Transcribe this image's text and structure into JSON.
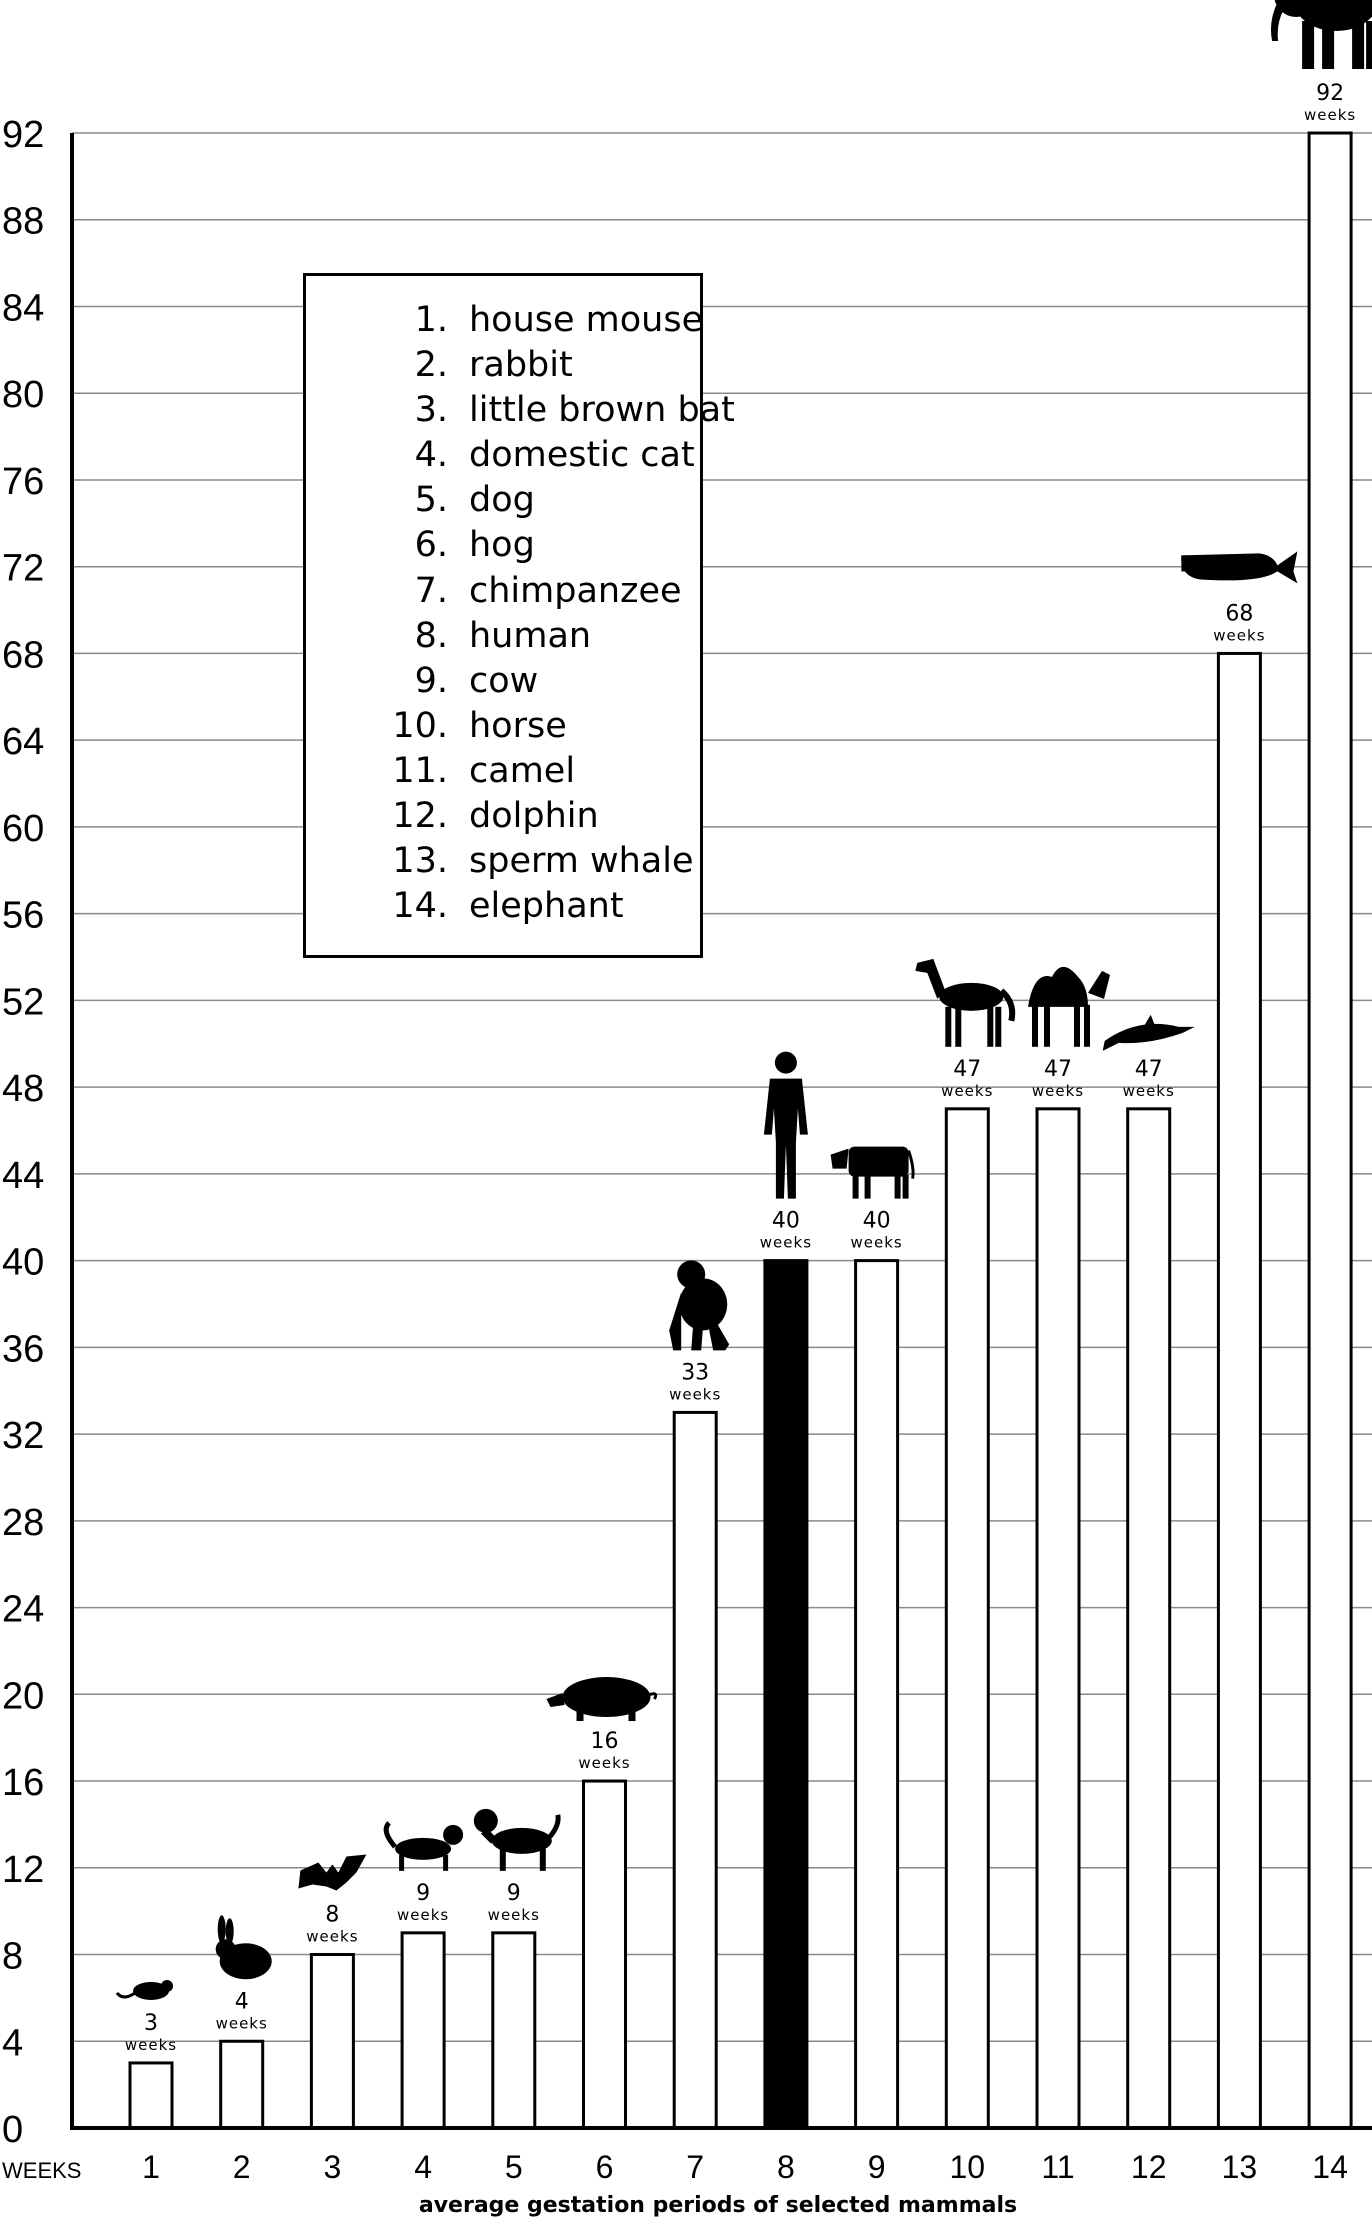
{
  "chart_data": {
    "type": "bar",
    "categories": [
      "1",
      "2",
      "3",
      "4",
      "5",
      "6",
      "7",
      "8",
      "9",
      "10",
      "11",
      "12",
      "13",
      "14"
    ],
    "values": [
      3,
      4,
      8,
      9,
      9,
      16,
      33,
      40,
      40,
      47,
      47,
      47,
      68,
      92
    ],
    "value_labels": [
      "3",
      "4",
      "8",
      "9",
      "9",
      "16",
      "33",
      "40",
      "40",
      "47",
      "47",
      "47",
      "68",
      "92"
    ],
    "unit_label": "weeks",
    "highlighted_index": 7,
    "highlight_color": "#000000",
    "bar_color": "#ffffff",
    "yticks": [
      0,
      4,
      8,
      12,
      16,
      20,
      24,
      28,
      32,
      36,
      40,
      44,
      48,
      52,
      56,
      60,
      64,
      68,
      72,
      76,
      80,
      84,
      88,
      92
    ],
    "ylim": [
      0,
      92
    ],
    "ylabel": "WEEKS",
    "xlabel": "average gestation periods of selected mammals",
    "grid": true,
    "legend_position": "upper-left",
    "legend": [
      {
        "num": "1.",
        "name": "house mouse"
      },
      {
        "num": "2.",
        "name": "rabbit"
      },
      {
        "num": "3.",
        "name": "little brown bat"
      },
      {
        "num": "4.",
        "name": "domestic cat"
      },
      {
        "num": "5.",
        "name": "dog"
      },
      {
        "num": "6.",
        "name": "hog"
      },
      {
        "num": "7.",
        "name": "chimpanzee"
      },
      {
        "num": "8.",
        "name": "human"
      },
      {
        "num": "9.",
        "name": "cow"
      },
      {
        "num": "10.",
        "name": "horse"
      },
      {
        "num": "11.",
        "name": "camel"
      },
      {
        "num": "12.",
        "name": "dolphin"
      },
      {
        "num": "13.",
        "name": "sperm whale"
      },
      {
        "num": "14.",
        "name": "elephant"
      }
    ],
    "icons": [
      "mouse-icon",
      "rabbit-icon",
      "bat-icon",
      "cat-icon",
      "dog-icon",
      "hog-icon",
      "chimpanzee-icon",
      "human-icon",
      "cow-icon",
      "horse-icon",
      "camel-icon",
      "dolphin-icon",
      "sperm-whale-icon",
      "elephant-icon"
    ]
  }
}
